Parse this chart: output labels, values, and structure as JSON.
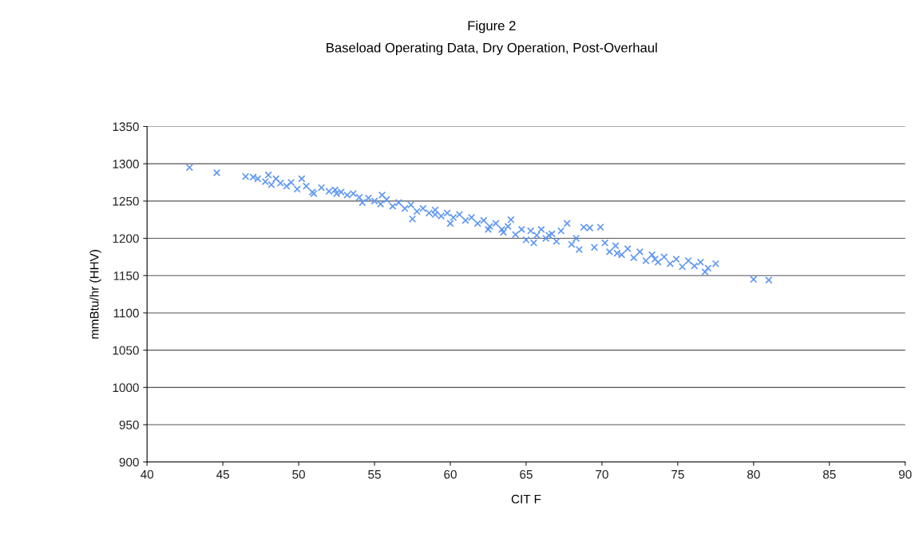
{
  "chart_data": {
    "type": "scatter",
    "title": "Figure 2",
    "subtitle": "Baseload Operating Data, Dry Operation, Post-Overhaul",
    "xlabel": "CIT F",
    "ylabel": "mmBtu/hr (HHV)",
    "marker": "cross",
    "grid": "y",
    "xlim": [
      40,
      90
    ],
    "xticks": [
      40,
      45,
      50,
      55,
      60,
      65,
      70,
      75,
      80,
      85,
      90
    ],
    "ylim": [
      900,
      1350
    ],
    "yticks": [
      900,
      950,
      1000,
      1050,
      1100,
      1150,
      1200,
      1250,
      1300,
      1350
    ],
    "series": [
      {
        "color": "#5f97f2",
        "x": [
          42.8,
          44.6,
          46.5,
          47.0,
          47.3,
          47.8,
          48.0,
          48.2,
          48.5,
          48.8,
          49.2,
          49.5,
          49.9,
          50.2,
          50.5,
          50.9,
          51.0,
          51.5,
          52.0,
          52.4,
          52.8,
          53.2,
          53.6,
          54.0,
          54.2,
          54.6,
          55.0,
          55.4,
          55.8,
          56.2,
          56.6,
          57.0,
          57.4,
          57.8,
          58.2,
          58.6,
          59.0,
          59.4,
          59.8,
          60.2,
          60.6,
          61.0,
          61.4,
          61.8,
          62.2,
          62.6,
          63.0,
          63.4,
          63.8,
          64.0,
          64.3,
          64.7,
          65.0,
          65.3,
          65.7,
          66.0,
          66.3,
          66.7,
          67.0,
          67.3,
          67.7,
          68.0,
          68.3,
          68.8,
          69.2,
          69.5,
          69.9,
          70.2,
          70.5,
          70.9,
          71.3,
          71.7,
          72.1,
          72.5,
          72.9,
          73.3,
          73.7,
          74.1,
          74.5,
          74.9,
          75.3,
          75.7,
          76.1,
          76.5,
          76.8,
          77.0,
          77.5,
          80.0,
          81.0,
          57.5,
          60.0,
          62.5,
          65.5,
          68.5,
          71.0,
          73.5,
          66.5,
          63.5,
          59.0,
          55.5,
          52.5
        ],
        "values": [
          1295,
          1288,
          1283,
          1282,
          1280,
          1276,
          1285,
          1272,
          1280,
          1274,
          1270,
          1275,
          1266,
          1280,
          1270,
          1262,
          1260,
          1268,
          1263,
          1265,
          1262,
          1258,
          1260,
          1255,
          1248,
          1254,
          1250,
          1246,
          1252,
          1243,
          1248,
          1240,
          1245,
          1236,
          1240,
          1234,
          1238,
          1230,
          1234,
          1228,
          1232,
          1224,
          1228,
          1220,
          1224,
          1216,
          1220,
          1212,
          1216,
          1225,
          1205,
          1212,
          1198,
          1210,
          1204,
          1212,
          1200,
          1206,
          1196,
          1210,
          1220,
          1192,
          1200,
          1215,
          1214,
          1188,
          1215,
          1194,
          1182,
          1190,
          1178,
          1186,
          1174,
          1182,
          1170,
          1178,
          1168,
          1175,
          1166,
          1172,
          1162,
          1170,
          1163,
          1168,
          1155,
          1160,
          1166,
          1145,
          1144,
          1226,
          1220,
          1212,
          1194,
          1185,
          1180,
          1172,
          1204,
          1208,
          1232,
          1258,
          1260
        ]
      }
    ]
  }
}
